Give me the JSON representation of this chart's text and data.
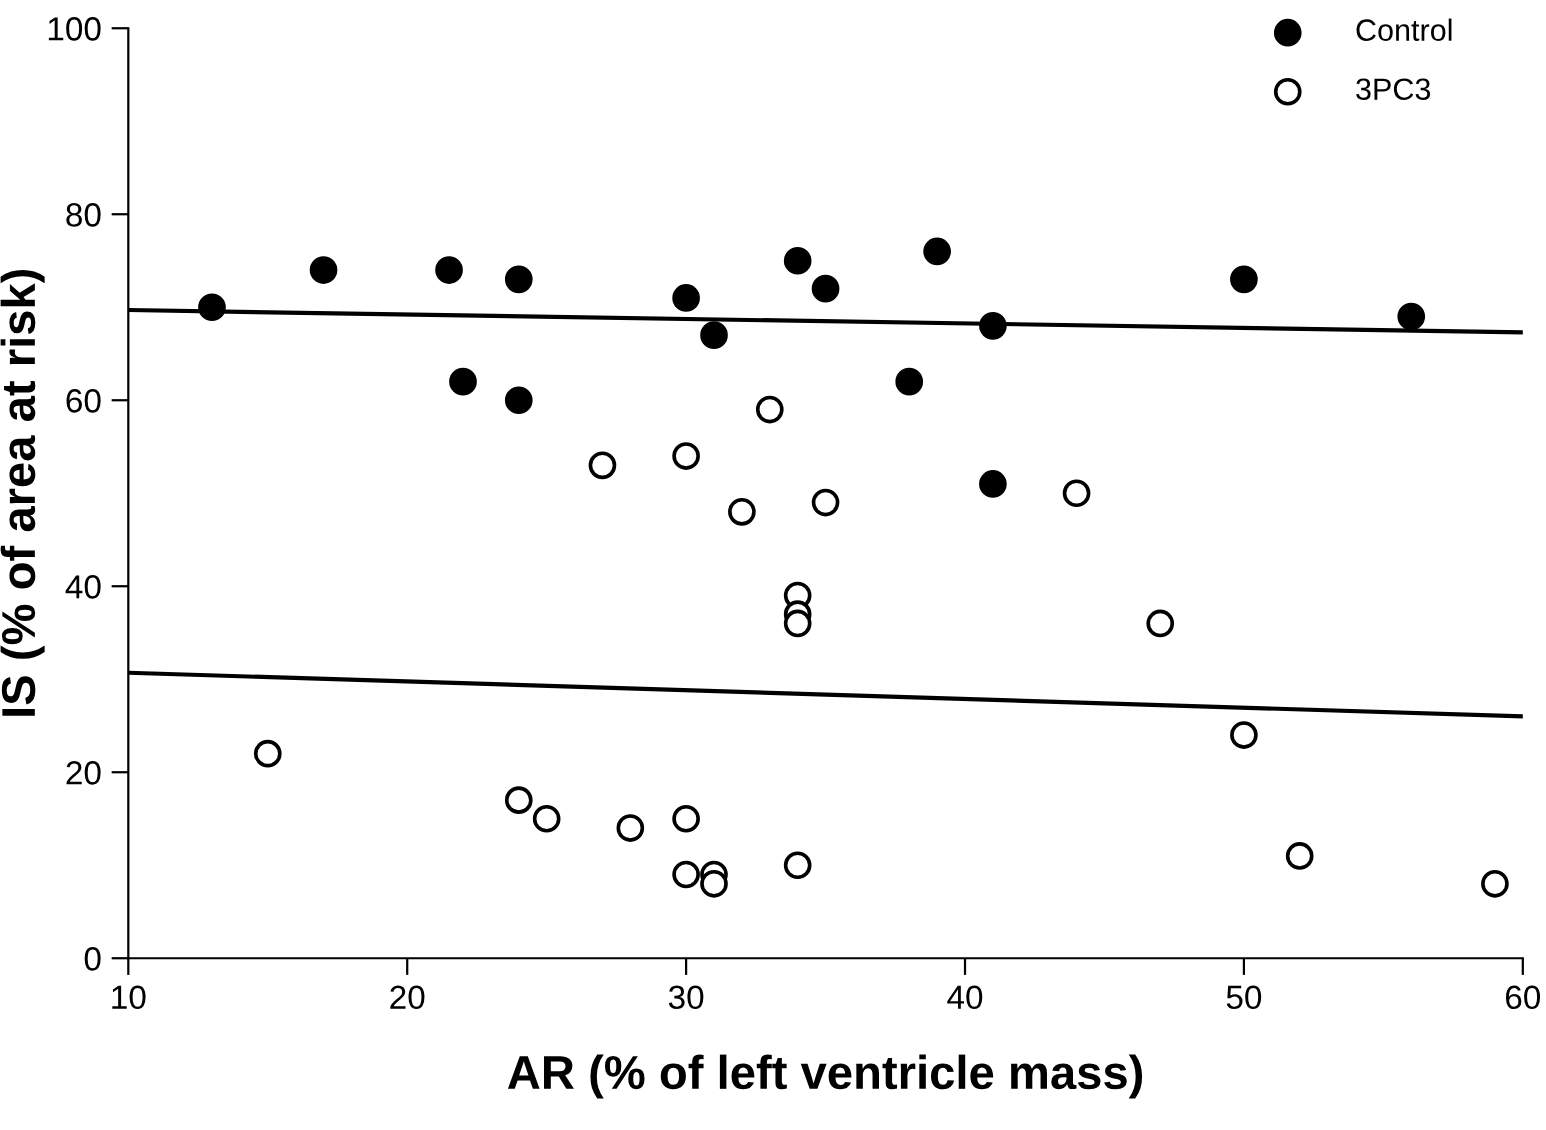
{
  "chart_data": {
    "type": "scatter",
    "xlabel": "AR (% of left ventricle mass)",
    "ylabel": "IS (% of area at risk)",
    "xlim": [
      10,
      60
    ],
    "xticks": [
      10,
      20,
      30,
      40,
      50,
      60
    ],
    "ylim": [
      0,
      100
    ],
    "yticks": [
      0,
      20,
      40,
      60,
      80,
      100
    ],
    "grid": false,
    "legend": "top right",
    "series": [
      {
        "name": "Control",
        "color": "#000000",
        "marker": "circle",
        "x": [
          13,
          17,
          21.5,
          22,
          24,
          24,
          30,
          31,
          34,
          35,
          38,
          39,
          41,
          41,
          50,
          56
        ],
        "values": [
          70,
          74,
          74,
          62,
          73,
          60,
          71,
          67,
          75,
          72,
          62,
          76,
          68,
          51,
          73,
          69
        ]
      },
      {
        "name": "3PC3",
        "color": "#ffffff",
        "marker": "circle",
        "x": [
          15,
          24,
          25,
          27,
          28,
          30,
          30,
          30,
          31,
          31,
          32,
          33,
          34,
          34,
          34,
          34,
          35,
          44,
          47,
          50,
          52,
          59
        ],
        "values": [
          22,
          17,
          15,
          53,
          14,
          54,
          15,
          9,
          9,
          8,
          48,
          59,
          39,
          37,
          36,
          10,
          49,
          50,
          36,
          24,
          11,
          8
        ]
      },
      {
        "type": "line",
        "color": "#000000",
        "x": [
          10,
          60
        ],
        "values": [
          69.7,
          67.3
        ]
      },
      {
        "type": "line",
        "color": "#000000",
        "x": [
          10,
          60
        ],
        "values": [
          30.7,
          26
        ]
      }
    ]
  }
}
